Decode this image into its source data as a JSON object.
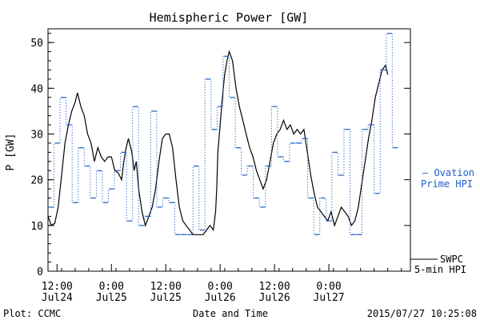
{
  "chart_data": {
    "type": "line",
    "title": "Hemispheric Power [GW]",
    "ylabel": "P [GW]",
    "xlabel": "Date and Time",
    "ylim": [
      0,
      53
    ],
    "yticks": [
      0,
      10,
      20,
      30,
      40,
      50
    ],
    "xlim": [
      "2015-07-24T10:00",
      "2015-07-27T18:00"
    ],
    "xticks": [
      {
        "time": "2015-07-24T12:00",
        "line1": "12:00",
        "line2": "Jul24"
      },
      {
        "time": "2015-07-25T00:00",
        "line1": "0:00",
        "line2": "Jul25"
      },
      {
        "time": "2015-07-25T12:00",
        "line1": "12:00",
        "line2": "Jul25"
      },
      {
        "time": "2015-07-26T00:00",
        "line1": "0:00",
        "line2": "Jul26"
      },
      {
        "time": "2015-07-26T12:00",
        "line1": "12:00",
        "line2": "Jul26"
      },
      {
        "time": "2015-07-27T00:00",
        "line1": "0:00",
        "line2": "Jul27"
      }
    ],
    "series": [
      {
        "name": "SWPC 5-min HPI",
        "label_lines": [
          "SWPC",
          "5-min HPI"
        ],
        "color": "#000000",
        "style": "solid",
        "points": [
          [
            "2015-07-24T10:00",
            12
          ],
          [
            "2015-07-24T10:45",
            10
          ],
          [
            "2015-07-24T11:30",
            10.5
          ],
          [
            "2015-07-24T12:15",
            14
          ],
          [
            "2015-07-24T13:00",
            21
          ],
          [
            "2015-07-24T13:45",
            28
          ],
          [
            "2015-07-24T14:30",
            32
          ],
          [
            "2015-07-24T15:15",
            35
          ],
          [
            "2015-07-24T16:00",
            37
          ],
          [
            "2015-07-24T16:30",
            39
          ],
          [
            "2015-07-24T17:15",
            36
          ],
          [
            "2015-07-24T18:00",
            34
          ],
          [
            "2015-07-24T18:45",
            30
          ],
          [
            "2015-07-24T19:30",
            28
          ],
          [
            "2015-07-24T20:15",
            24
          ],
          [
            "2015-07-24T21:00",
            27
          ],
          [
            "2015-07-24T21:45",
            25
          ],
          [
            "2015-07-24T22:30",
            24
          ],
          [
            "2015-07-24T23:15",
            25
          ],
          [
            "2015-07-25T00:00",
            25
          ],
          [
            "2015-07-25T00:45",
            22
          ],
          [
            "2015-07-25T01:30",
            21.5
          ],
          [
            "2015-07-25T02:15",
            20
          ],
          [
            "2015-07-25T02:45",
            24
          ],
          [
            "2015-07-25T03:15",
            27
          ],
          [
            "2015-07-25T03:45",
            29
          ],
          [
            "2015-07-25T04:30",
            26
          ],
          [
            "2015-07-25T05:00",
            22
          ],
          [
            "2015-07-25T05:30",
            24
          ],
          [
            "2015-07-25T06:00",
            18
          ],
          [
            "2015-07-25T06:45",
            13
          ],
          [
            "2015-07-25T07:30",
            10
          ],
          [
            "2015-07-25T08:15",
            12
          ],
          [
            "2015-07-25T09:00",
            14
          ],
          [
            "2015-07-25T09:45",
            18
          ],
          [
            "2015-07-25T10:30",
            24
          ],
          [
            "2015-07-25T11:15",
            29
          ],
          [
            "2015-07-25T12:00",
            30
          ],
          [
            "2015-07-25T12:45",
            30
          ],
          [
            "2015-07-25T13:30",
            27
          ],
          [
            "2015-07-25T14:15",
            20
          ],
          [
            "2015-07-25T15:00",
            14
          ],
          [
            "2015-07-25T15:45",
            11
          ],
          [
            "2015-07-25T16:30",
            10
          ],
          [
            "2015-07-25T17:15",
            9
          ],
          [
            "2015-07-25T18:00",
            8
          ],
          [
            "2015-07-25T18:45",
            8
          ],
          [
            "2015-07-25T19:30",
            8
          ],
          [
            "2015-07-25T20:15",
            8
          ],
          [
            "2015-07-25T21:00",
            9
          ],
          [
            "2015-07-25T21:45",
            10
          ],
          [
            "2015-07-25T22:30",
            9
          ],
          [
            "2015-07-25T23:00",
            13
          ],
          [
            "2015-07-25T23:15",
            18
          ],
          [
            "2015-07-25T23:30",
            26
          ],
          [
            "2015-07-26T00:00",
            32
          ],
          [
            "2015-07-26T00:30",
            38
          ],
          [
            "2015-07-26T01:00",
            43
          ],
          [
            "2015-07-26T01:30",
            46
          ],
          [
            "2015-07-26T02:00",
            48
          ],
          [
            "2015-07-26T02:45",
            46
          ],
          [
            "2015-07-26T03:30",
            40
          ],
          [
            "2015-07-26T04:15",
            36
          ],
          [
            "2015-07-26T05:00",
            33
          ],
          [
            "2015-07-26T05:45",
            30
          ],
          [
            "2015-07-26T06:30",
            27
          ],
          [
            "2015-07-26T07:15",
            25
          ],
          [
            "2015-07-26T08:00",
            22
          ],
          [
            "2015-07-26T08:45",
            20
          ],
          [
            "2015-07-26T09:30",
            18
          ],
          [
            "2015-07-26T10:15",
            20
          ],
          [
            "2015-07-26T11:00",
            24
          ],
          [
            "2015-07-26T11:45",
            28
          ],
          [
            "2015-07-26T12:30",
            30
          ],
          [
            "2015-07-26T13:15",
            31
          ],
          [
            "2015-07-26T14:00",
            33
          ],
          [
            "2015-07-26T14:45",
            31
          ],
          [
            "2015-07-26T15:30",
            32
          ],
          [
            "2015-07-26T16:15",
            30
          ],
          [
            "2015-07-26T17:00",
            31
          ],
          [
            "2015-07-26T17:45",
            30
          ],
          [
            "2015-07-26T18:30",
            31
          ],
          [
            "2015-07-26T19:15",
            26
          ],
          [
            "2015-07-26T20:00",
            21
          ],
          [
            "2015-07-26T20:45",
            17
          ],
          [
            "2015-07-26T21:30",
            14
          ],
          [
            "2015-07-26T22:15",
            13
          ],
          [
            "2015-07-26T23:00",
            12
          ],
          [
            "2015-07-26T23:45",
            11
          ],
          [
            "2015-07-27T00:30",
            13
          ],
          [
            "2015-07-27T01:15",
            10
          ],
          [
            "2015-07-27T02:00",
            12
          ],
          [
            "2015-07-27T02:45",
            14
          ],
          [
            "2015-07-27T03:30",
            13
          ],
          [
            "2015-07-27T04:15",
            12
          ],
          [
            "2015-07-27T05:00",
            10
          ],
          [
            "2015-07-27T05:45",
            11
          ],
          [
            "2015-07-27T06:30",
            14
          ],
          [
            "2015-07-27T07:15",
            19
          ],
          [
            "2015-07-27T08:00",
            24
          ],
          [
            "2015-07-27T08:45",
            29
          ],
          [
            "2015-07-27T09:30",
            33
          ],
          [
            "2015-07-27T10:15",
            38
          ],
          [
            "2015-07-27T11:00",
            41
          ],
          [
            "2015-07-27T11:45",
            44
          ],
          [
            "2015-07-27T12:30",
            45
          ],
          [
            "2015-07-27T13:00",
            43
          ]
        ]
      },
      {
        "name": "Ovation Prime HPI",
        "label_lines": [
          "— Ovation",
          "Prime HPI"
        ],
        "color": "#1f5fc8",
        "style": "dotted-steps",
        "points": [
          [
            "2015-07-24T10:00",
            14
          ],
          [
            "2015-07-24T11:20",
            28
          ],
          [
            "2015-07-24T12:40",
            38
          ],
          [
            "2015-07-24T14:00",
            32
          ],
          [
            "2015-07-24T15:20",
            15
          ],
          [
            "2015-07-24T16:40",
            27
          ],
          [
            "2015-07-24T18:00",
            23
          ],
          [
            "2015-07-24T19:20",
            16
          ],
          [
            "2015-07-24T20:40",
            22
          ],
          [
            "2015-07-24T22:00",
            15
          ],
          [
            "2015-07-24T23:20",
            18
          ],
          [
            "2015-07-25T00:40",
            22
          ],
          [
            "2015-07-25T02:00",
            26
          ],
          [
            "2015-07-25T03:20",
            11
          ],
          [
            "2015-07-25T04:40",
            36
          ],
          [
            "2015-07-25T06:00",
            10
          ],
          [
            "2015-07-25T07:20",
            12
          ],
          [
            "2015-07-25T08:40",
            35
          ],
          [
            "2015-07-25T10:00",
            14
          ],
          [
            "2015-07-25T11:20",
            16
          ],
          [
            "2015-07-25T12:40",
            15
          ],
          [
            "2015-07-25T14:00",
            8
          ],
          [
            "2015-07-25T15:20",
            8
          ],
          [
            "2015-07-25T16:40",
            8
          ],
          [
            "2015-07-25T18:00",
            23
          ],
          [
            "2015-07-25T19:20",
            9
          ],
          [
            "2015-07-25T20:40",
            42
          ],
          [
            "2015-07-25T22:00",
            31
          ],
          [
            "2015-07-25T23:20",
            36
          ],
          [
            "2015-07-26T00:40",
            47
          ],
          [
            "2015-07-26T02:00",
            38
          ],
          [
            "2015-07-26T03:20",
            27
          ],
          [
            "2015-07-26T04:40",
            21
          ],
          [
            "2015-07-26T06:00",
            23
          ],
          [
            "2015-07-26T07:20",
            16
          ],
          [
            "2015-07-26T08:40",
            14
          ],
          [
            "2015-07-26T10:00",
            23
          ],
          [
            "2015-07-26T11:20",
            36
          ],
          [
            "2015-07-26T12:40",
            25
          ],
          [
            "2015-07-26T14:00",
            24
          ],
          [
            "2015-07-26T15:20",
            28
          ],
          [
            "2015-07-26T16:40",
            28
          ],
          [
            "2015-07-26T18:00",
            29
          ],
          [
            "2015-07-26T19:20",
            16
          ],
          [
            "2015-07-26T20:40",
            8
          ],
          [
            "2015-07-26T22:00",
            16
          ],
          [
            "2015-07-26T23:20",
            11
          ],
          [
            "2015-07-27T00:40",
            26
          ],
          [
            "2015-07-27T02:00",
            21
          ],
          [
            "2015-07-27T03:20",
            31
          ],
          [
            "2015-07-27T04:40",
            8
          ],
          [
            "2015-07-27T06:00",
            8
          ],
          [
            "2015-07-27T07:20",
            31
          ],
          [
            "2015-07-27T08:40",
            32
          ],
          [
            "2015-07-27T10:00",
            17
          ],
          [
            "2015-07-27T11:20",
            44
          ],
          [
            "2015-07-27T12:40",
            52
          ],
          [
            "2015-07-27T14:00",
            27
          ]
        ]
      }
    ]
  },
  "footer": {
    "plot_credit": "Plot: CCMC",
    "timestamp": "2015/07/27 10:25:08"
  }
}
